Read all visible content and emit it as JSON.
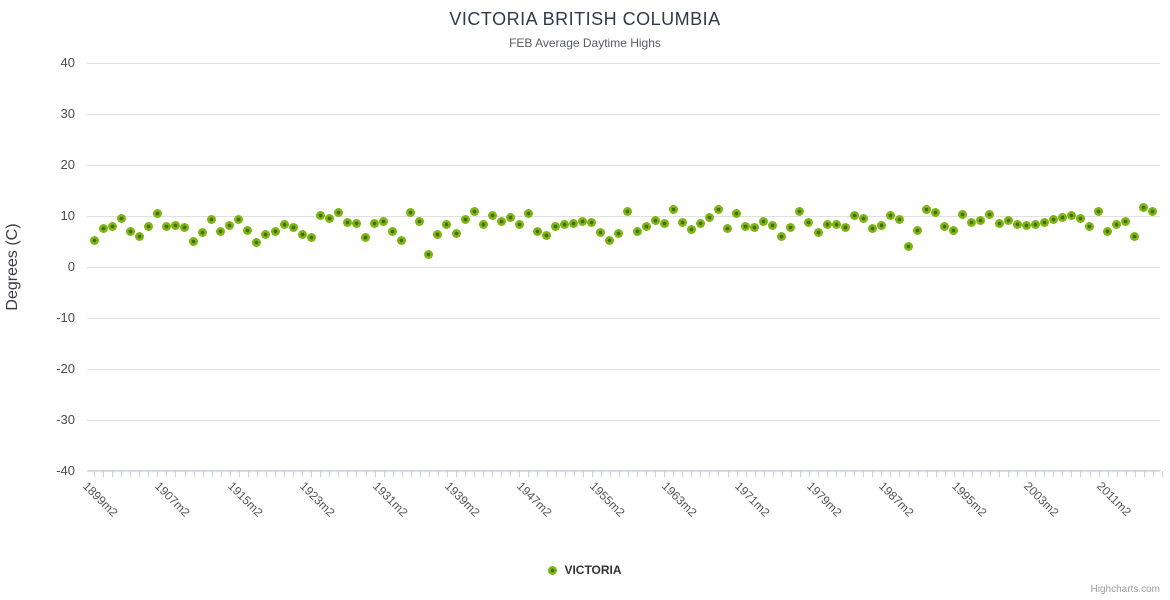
{
  "title": "VICTORIA BRITISH COLUMBIA",
  "subtitle": "FEB Average Daytime Highs",
  "y_axis": {
    "title": "Degrees (C)",
    "ticks": [
      40,
      30,
      20,
      10,
      0,
      -10,
      -20,
      -30,
      -40
    ]
  },
  "legend": {
    "label": "VICTORIA"
  },
  "credits": "Highcharts.com",
  "colors": {
    "marker_outer": "#7db511",
    "marker_inner": "#456c00",
    "gridline": "#e0e0e0",
    "x_tick": "#c9d0e4",
    "axis_line": "#ccd3e6",
    "title": "#2f3a4a"
  },
  "chart_data": {
    "type": "scatter",
    "title": "VICTORIA BRITISH COLUMBIA",
    "subtitle": "FEB Average Daytime Highs",
    "ylabel": "Degrees (C)",
    "ylim": [
      -40,
      40
    ],
    "grid": "horizontal",
    "legend_position": "bottom-center",
    "x_start_year": 1899,
    "x_label_suffix": "m2",
    "x_label_interval": 8,
    "x_tick_labels": [
      "1899m2",
      "1907m2",
      "1915m2",
      "1923m2",
      "1931m2",
      "1939m2",
      "1947m2",
      "1955m2",
      "1963m2",
      "1971m2",
      "1979m2",
      "1987m2",
      "1995m2",
      "2003m2",
      "2011m2"
    ],
    "series": [
      {
        "name": "VICTORIA",
        "values": [
          5.2,
          7.6,
          8.0,
          9.6,
          7.0,
          6.0,
          8.0,
          10.4,
          8.0,
          8.2,
          7.8,
          5.0,
          6.8,
          9.4,
          7.0,
          8.2,
          9.4,
          7.2,
          4.8,
          6.4,
          6.9,
          8.3,
          7.7,
          6.3,
          5.7,
          10.1,
          9.5,
          10.7,
          8.7,
          8.5,
          5.7,
          8.5,
          8.9,
          6.9,
          5.1,
          10.7,
          8.9,
          2.5,
          6.3,
          8.3,
          6.5,
          9.3,
          10.9,
          8.3,
          10.1,
          8.9,
          9.7,
          8.3,
          10.5,
          6.9,
          6.1,
          7.9,
          8.3,
          8.5,
          8.9,
          8.7,
          6.7,
          5.1,
          6.5,
          10.9,
          6.9,
          7.9,
          9.1,
          8.5,
          11.3,
          8.7,
          7.3,
          8.5,
          9.7,
          11.3,
          7.5,
          10.5,
          7.9,
          7.7,
          8.9,
          8.1,
          5.9,
          7.7,
          10.9,
          8.7,
          6.7,
          8.3,
          8.3,
          7.7,
          10.1,
          9.5,
          7.5,
          8.1,
          10.1,
          9.3,
          4.1,
          7.1,
          11.3,
          10.7,
          7.9,
          7.1,
          10.3,
          8.7,
          9.1,
          10.3,
          8.5,
          9.1,
          8.3,
          8.1,
          8.3,
          8.7,
          9.3,
          9.7,
          10.1,
          9.6,
          8.0,
          10.8,
          7.0,
          8.4,
          9.0,
          6.0,
          11.6,
          10.8
        ]
      }
    ]
  }
}
